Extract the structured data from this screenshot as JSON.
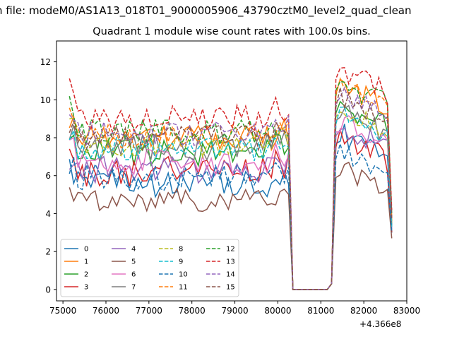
{
  "figure": {
    "suptitle": "n file: modeM0/AS1A13_018T01_9000005906_43790cztM0_level2_quad_clean",
    "title": "Quadrant 1 module wise count rates with 100.0s bins.",
    "x_offset_label": "+4.366e8"
  },
  "chart_data": {
    "type": "line",
    "title": "Quadrant 1 module wise count rates with 100.0s bins.",
    "xlabel": "",
    "ylabel": "",
    "xlim": [
      74850,
      83000
    ],
    "ylim": [
      -0.6,
      13.1
    ],
    "x_offset": 436600000,
    "xticks": [
      75000,
      76000,
      77000,
      78000,
      79000,
      80000,
      81000,
      82000,
      83000
    ],
    "yticks": [
      0,
      2,
      4,
      6,
      8,
      10,
      12
    ],
    "grid": false,
    "legend": {
      "placement": "lower-left",
      "columns": 4
    },
    "segments": [
      {
        "x_start": 75150,
        "x_end": 80250,
        "step": 100
      },
      {
        "x_start": 80350,
        "x_end": 81150,
        "step": 100
      },
      {
        "x_start": 81250,
        "x_end": 82650,
        "step": 100
      }
    ],
    "series": [
      {
        "name": "0",
        "color": "#1f77b4",
        "dash": "solid",
        "level": 5.6,
        "gap": 0.0,
        "peak": 8.2,
        "end": 3.0,
        "spike": 0.6,
        "amp": 0.45
      },
      {
        "name": "1",
        "color": "#ff7f0e",
        "dash": "solid",
        "level": 8.0,
        "gap": 0.0,
        "peak": 10.8,
        "end": 3.6,
        "spike": 1.1,
        "amp": 0.4
      },
      {
        "name": "2",
        "color": "#2ca02c",
        "dash": "solid",
        "level": 7.2,
        "gap": 0.0,
        "peak": 9.8,
        "end": 3.4,
        "spike": 1.0,
        "amp": 0.45
      },
      {
        "name": "3",
        "color": "#d62728",
        "dash": "solid",
        "level": 6.2,
        "gap": 0.0,
        "peak": 8.0,
        "end": 3.0,
        "spike": 0.5,
        "amp": 0.5
      },
      {
        "name": "4",
        "color": "#9467bd",
        "dash": "solid",
        "level": 6.3,
        "gap": 0.0,
        "peak": 8.6,
        "end": 3.2,
        "spike": 0.7,
        "amp": 0.45
      },
      {
        "name": "5",
        "color": "#8c564b",
        "dash": "solid",
        "level": 4.7,
        "gap": 0.0,
        "peak": 6.4,
        "end": 2.7,
        "spike": 0.3,
        "amp": 0.4
      },
      {
        "name": "6",
        "color": "#e377c2",
        "dash": "solid",
        "level": 6.7,
        "gap": 0.0,
        "peak": 8.8,
        "end": 3.3,
        "spike": 0.8,
        "amp": 0.45
      },
      {
        "name": "7",
        "color": "#7f7f7f",
        "dash": "solid",
        "level": 7.5,
        "gap": 0.0,
        "peak": 9.4,
        "end": 3.4,
        "spike": 0.9,
        "amp": 0.45
      },
      {
        "name": "8",
        "color": "#bcbd22",
        "dash": "dashed",
        "level": 7.6,
        "gap": 0.0,
        "peak": 9.6,
        "end": 3.5,
        "spike": 0.9,
        "amp": 0.4
      },
      {
        "name": "9",
        "color": "#17becf",
        "dash": "dashed",
        "level": 7.4,
        "gap": 0.0,
        "peak": 9.2,
        "end": 3.3,
        "spike": 0.8,
        "amp": 0.4
      },
      {
        "name": "10",
        "color": "#1f77b4",
        "dash": "dashed",
        "level": 5.9,
        "gap": 0.0,
        "peak": 7.4,
        "end": 3.0,
        "spike": 0.5,
        "amp": 0.45
      },
      {
        "name": "11",
        "color": "#ff7f0e",
        "dash": "dashed",
        "level": 8.1,
        "gap": 0.0,
        "peak": 10.7,
        "end": 3.8,
        "spike": 1.0,
        "amp": 0.4
      },
      {
        "name": "12",
        "color": "#2ca02c",
        "dash": "dashed",
        "level": 8.3,
        "gap": 0.0,
        "peak": 11.0,
        "end": 4.0,
        "spike": 1.5,
        "amp": 0.45
      },
      {
        "name": "13",
        "color": "#d62728",
        "dash": "dashed",
        "level": 9.0,
        "gap": 0.0,
        "peak": 11.6,
        "end": 4.2,
        "spike": 1.6,
        "amp": 0.45
      },
      {
        "name": "14",
        "color": "#9467bd",
        "dash": "dashed",
        "level": 8.2,
        "gap": 0.0,
        "peak": 10.3,
        "end": 3.8,
        "spike": 1.0,
        "amp": 0.4
      },
      {
        "name": "15",
        "color": "#8c564b",
        "dash": "dashed",
        "level": 8.0,
        "gap": 0.0,
        "peak": 10.1,
        "end": 3.7,
        "spike": 0.9,
        "amp": 0.4
      }
    ]
  }
}
